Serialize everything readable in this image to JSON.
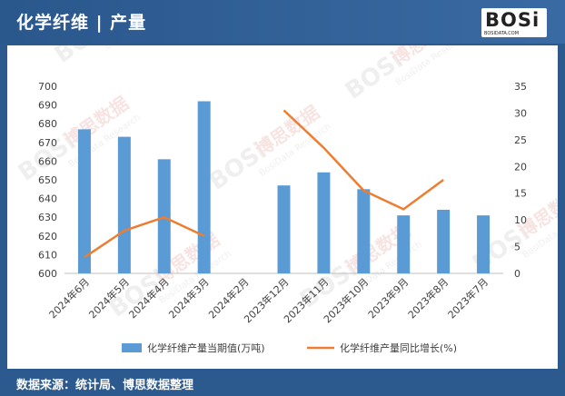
{
  "header": {
    "title": "化学纤维 | 产量",
    "logo_text": "BOSi",
    "logo_sub": "BOSIDATA.COM"
  },
  "footer": {
    "source": "数据来源：统计局、博思数据整理"
  },
  "watermark": {
    "text_cn": "博思数据",
    "text_en": "BosiData Research"
  },
  "chart_data": {
    "type": "bar",
    "categories": [
      "2024年6月",
      "2024年5月",
      "2024年4月",
      "2024年3月",
      "2024年2月",
      "2023年12月",
      "2023年11月",
      "2023年10月",
      "2023年9月",
      "2023年8月",
      "2023年7月"
    ],
    "series": [
      {
        "name": "化学纤维产量当期值(万吨)",
        "type": "bar",
        "axis": "left",
        "color": "#5b9bd5",
        "values": [
          677,
          673,
          661,
          692,
          null,
          647,
          654,
          645,
          631,
          634,
          631
        ]
      },
      {
        "name": "化学纤维产量同比增长(%)",
        "type": "line",
        "axis": "right",
        "color": "#ed7d31",
        "values": [
          3,
          8,
          10.5,
          7,
          null,
          30.5,
          23.5,
          15.5,
          12,
          17.5,
          null
        ]
      }
    ],
    "y_left": {
      "min": 600,
      "max": 700,
      "step": 10
    },
    "y_right": {
      "min": 0,
      "max": 35,
      "step": 5
    },
    "legend_position": "bottom"
  }
}
